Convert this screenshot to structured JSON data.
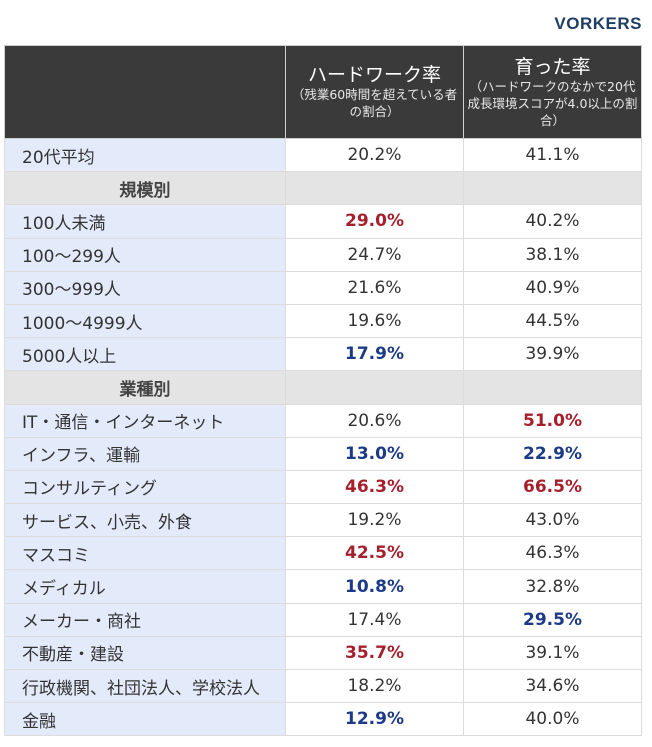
{
  "brand": {
    "logo_text": "VORKERS"
  },
  "table": {
    "columns": [
      {
        "title": "",
        "subtitle": ""
      },
      {
        "title": "ハードワーク率",
        "subtitle": "（残業60時間を超えている者の割合）"
      },
      {
        "title": "育った率",
        "subtitle": "（ハードワークのなかで20代成長環境スコアが4.0以上の割合）"
      }
    ]
  },
  "colors": {
    "high": "#a5202d",
    "low": "#1d3a86",
    "normal": "#333333"
  },
  "chart_data": {
    "type": "table",
    "title": "",
    "columns": [
      "",
      "ハードワーク率（残業60時間を超えている者の割合）",
      "育った率（ハードワークのなかで20代成長環境スコアが4.0以上の割合）"
    ],
    "rows": [
      {
        "kind": "data",
        "label": "20代平均",
        "hardwork": "20.2%",
        "grown": "41.1%",
        "hardwork_hl": "",
        "grown_hl": ""
      },
      {
        "kind": "section",
        "label": "規模別"
      },
      {
        "kind": "data",
        "label": "100人未満",
        "hardwork": "29.0%",
        "grown": "40.2%",
        "hardwork_hl": "high",
        "grown_hl": ""
      },
      {
        "kind": "data",
        "label": "100〜299人",
        "hardwork": "24.7%",
        "grown": "38.1%",
        "hardwork_hl": "",
        "grown_hl": ""
      },
      {
        "kind": "data",
        "label": "300〜999人",
        "hardwork": "21.6%",
        "grown": "40.9%",
        "hardwork_hl": "",
        "grown_hl": ""
      },
      {
        "kind": "data",
        "label": "1000〜4999人",
        "hardwork": "19.6%",
        "grown": "44.5%",
        "hardwork_hl": "",
        "grown_hl": ""
      },
      {
        "kind": "data",
        "label": "5000人以上",
        "hardwork": "17.9%",
        "grown": "39.9%",
        "hardwork_hl": "low",
        "grown_hl": ""
      },
      {
        "kind": "section",
        "label": "業種別"
      },
      {
        "kind": "data",
        "label": "IT・通信・インターネット",
        "hardwork": "20.6%",
        "grown": "51.0%",
        "hardwork_hl": "",
        "grown_hl": "high"
      },
      {
        "kind": "data",
        "label": "インフラ、運輸",
        "hardwork": "13.0%",
        "grown": "22.9%",
        "hardwork_hl": "low",
        "grown_hl": "low"
      },
      {
        "kind": "data",
        "label": "コンサルティング",
        "hardwork": "46.3%",
        "grown": "66.5%",
        "hardwork_hl": "high",
        "grown_hl": "high"
      },
      {
        "kind": "data",
        "label": "サービス、小売、外食",
        "hardwork": "19.2%",
        "grown": "43.0%",
        "hardwork_hl": "",
        "grown_hl": ""
      },
      {
        "kind": "data",
        "label": "マスコミ",
        "hardwork": "42.5%",
        "grown": "46.3%",
        "hardwork_hl": "high",
        "grown_hl": ""
      },
      {
        "kind": "data",
        "label": "メディカル",
        "hardwork": "10.8%",
        "grown": "32.8%",
        "hardwork_hl": "low",
        "grown_hl": ""
      },
      {
        "kind": "data",
        "label": "メーカー・商社",
        "hardwork": "17.4%",
        "grown": "29.5%",
        "hardwork_hl": "",
        "grown_hl": "low"
      },
      {
        "kind": "data",
        "label": "不動産・建設",
        "hardwork": "35.7%",
        "grown": "39.1%",
        "hardwork_hl": "high",
        "grown_hl": ""
      },
      {
        "kind": "data",
        "label": "行政機関、社団法人、学校法人",
        "hardwork": "18.2%",
        "grown": "34.6%",
        "hardwork_hl": "",
        "grown_hl": ""
      },
      {
        "kind": "data",
        "label": "金融",
        "hardwork": "12.9%",
        "grown": "40.0%",
        "hardwork_hl": "low",
        "grown_hl": ""
      }
    ]
  }
}
